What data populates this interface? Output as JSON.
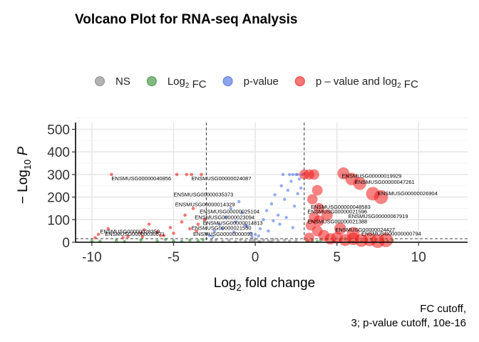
{
  "chart_data": {
    "type": "scatter",
    "title": "Volcano Plot for RNA-seq Analysis",
    "xlabel": {
      "base": "Log",
      "sub": "2",
      "rest": " fold change"
    },
    "ylabel": {
      "pre": "− Log",
      "sub": "10",
      "post": " P"
    },
    "xlim": [
      -11,
      13
    ],
    "ylim": [
      0,
      530
    ],
    "x_ticks": [
      -10,
      -5,
      0,
      5,
      10
    ],
    "x_tick_labels": [
      "-10",
      "-5",
      "0",
      "5",
      "10"
    ],
    "y_ticks": [
      0,
      100,
      200,
      300,
      400,
      500
    ],
    "y_tick_labels": [
      "0",
      "100",
      "200",
      "300",
      "400",
      "500"
    ],
    "grid": true,
    "legend_position": "top",
    "legend": [
      {
        "key": "NS",
        "parts": [
          {
            "t": "NS"
          }
        ],
        "color": "#808080"
      },
      {
        "key": "FC",
        "parts": [
          {
            "t": "Log"
          },
          {
            "t": "2",
            "sub": true
          },
          {
            "t": " FC"
          }
        ],
        "color": "#2e8b2e"
      },
      {
        "key": "P",
        "parts": [
          {
            "t": "p-value"
          }
        ],
        "color": "#4169e1"
      },
      {
        "key": "FCP",
        "parts": [
          {
            "t": "p – value and log"
          },
          {
            "t": "2",
            "sub": true
          },
          {
            "t": " FC"
          }
        ],
        "color": "#ee1c1c"
      }
    ],
    "fc_cutoff": 3,
    "pvalue_cutoff_line": 15.7,
    "caption": [
      "FC cutoff,",
      "3; p-value cutoff, 10e-16"
    ],
    "series": [
      {
        "key": "NS",
        "points": [
          [
            -0.6,
            5
          ],
          [
            -0.3,
            8
          ],
          [
            0.2,
            4
          ],
          [
            0.5,
            10
          ],
          [
            0.8,
            6
          ],
          [
            1.1,
            12
          ],
          [
            -1.2,
            3
          ],
          [
            1.4,
            7
          ],
          [
            -0.9,
            11
          ],
          [
            2.1,
            5
          ],
          [
            -2.0,
            4
          ],
          [
            0.0,
            14
          ],
          [
            1.8,
            9
          ],
          [
            -1.6,
            8
          ],
          [
            2.5,
            6
          ],
          [
            -2.4,
            10
          ],
          [
            0.3,
            2
          ],
          [
            -0.1,
            6
          ],
          [
            1.0,
            3
          ],
          [
            -2.7,
            7
          ]
        ]
      },
      {
        "key": "FC",
        "points": [
          [
            -10,
            6
          ],
          [
            -9.5,
            4
          ],
          [
            -8.5,
            8
          ],
          [
            -8,
            3
          ],
          [
            -7,
            10
          ],
          [
            -6,
            5
          ],
          [
            -5.5,
            12
          ],
          [
            -5,
            7
          ],
          [
            -4.5,
            4
          ],
          [
            -4,
            9
          ],
          [
            -3.5,
            6
          ],
          [
            -3.2,
            11
          ],
          [
            3.2,
            5
          ],
          [
            3.5,
            8
          ],
          [
            4,
            10
          ],
          [
            4.4,
            13
          ],
          [
            4.8,
            6
          ],
          [
            5.2,
            11
          ],
          [
            5.5,
            14
          ],
          [
            5.8,
            8
          ],
          [
            6.2,
            12
          ],
          [
            6.5,
            4
          ],
          [
            6.8,
            9
          ],
          [
            7.1,
            13
          ],
          [
            7.4,
            7
          ],
          [
            7.8,
            10
          ],
          [
            8.1,
            5
          ],
          [
            8.4,
            9
          ],
          [
            3.8,
            3
          ],
          [
            6.0,
            2
          ]
        ]
      },
      {
        "key": "P",
        "points": [
          [
            -2.8,
            30
          ],
          [
            -2.5,
            50
          ],
          [
            -2.2,
            80
          ],
          [
            -2,
            60
          ],
          [
            -1.8,
            110
          ],
          [
            -1.5,
            150
          ],
          [
            -1.2,
            90
          ],
          [
            -1,
            180
          ],
          [
            -0.8,
            130
          ],
          [
            -0.5,
            70
          ],
          [
            -0.3,
            40
          ],
          [
            0,
            35
          ],
          [
            0.3,
            60
          ],
          [
            0.5,
            100
          ],
          [
            0.7,
            140
          ],
          [
            1,
            170
          ],
          [
            1.2,
            210
          ],
          [
            1.4,
            120
          ],
          [
            1.6,
            250
          ],
          [
            1.8,
            190
          ],
          [
            2,
            230
          ],
          [
            2.2,
            270
          ],
          [
            2.4,
            160
          ],
          [
            2.5,
            300
          ],
          [
            2.6,
            215
          ],
          [
            2.7,
            280
          ],
          [
            2.8,
            240
          ],
          [
            2.9,
            300
          ],
          [
            1.5,
            80
          ],
          [
            0.8,
            50
          ],
          [
            -0.2,
            22
          ],
          [
            0.2,
            28
          ],
          [
            -1.3,
            45
          ],
          [
            1.9,
            110
          ],
          [
            2.3,
            65
          ],
          [
            -2.6,
            25
          ],
          [
            -0.6,
            75
          ],
          [
            1.1,
            95
          ],
          [
            2.6,
            300
          ],
          [
            2.3,
            300
          ],
          [
            2.1,
            300
          ],
          [
            1.7,
            300
          ]
        ]
      },
      {
        "key": "FCP",
        "points": [
          [
            -9.8,
            20
          ],
          [
            -9.6,
            35
          ],
          [
            -9,
            60
          ],
          [
            -8.8,
            300
          ],
          [
            -7.8,
            25
          ],
          [
            -7,
            40
          ],
          [
            -6.8,
            55
          ],
          [
            -6.5,
            80
          ],
          [
            -6,
            45
          ],
          [
            -5.8,
            30
          ],
          [
            -5.2,
            65
          ],
          [
            -5,
            40
          ],
          [
            -4.8,
            300
          ],
          [
            -4.5,
            90
          ],
          [
            -4.3,
            120
          ],
          [
            -4,
            60
          ],
          [
            -3.8,
            150
          ],
          [
            -3.5,
            80
          ],
          [
            -3.3,
            300
          ],
          [
            -3.1,
            100
          ],
          [
            -4.2,
            300
          ],
          [
            -3.9,
            300
          ],
          [
            -6.9,
            25
          ],
          [
            -5.6,
            30
          ],
          [
            -3.6,
            50
          ],
          [
            -8.1,
            20
          ]
        ],
        "big": [
          [
            3.0,
            300
          ],
          [
            3.3,
            300
          ],
          [
            3.6,
            300
          ],
          [
            3.8,
            230
          ],
          [
            3.9,
            150
          ],
          [
            3.5,
            190
          ],
          [
            3.6,
            110
          ],
          [
            3.4,
            75
          ],
          [
            3.8,
            50
          ],
          [
            4.2,
            30
          ],
          [
            4.6,
            15
          ],
          [
            5.0,
            20
          ],
          [
            5.5,
            10
          ],
          [
            6.0,
            15
          ],
          [
            6.5,
            8
          ],
          [
            7.0,
            12
          ],
          [
            7.5,
            5
          ],
          [
            8.0,
            10
          ],
          [
            3.3,
            20
          ],
          [
            5.4,
            305
          ],
          [
            5.9,
            280
          ],
          [
            6.4,
            260
          ],
          [
            7.2,
            215
          ],
          [
            7.7,
            200
          ],
          [
            4.4,
            120
          ],
          [
            5.2,
            60
          ],
          [
            6.0,
            40
          ],
          [
            3.9,
            95
          ]
        ]
      }
    ],
    "gene_labels": [
      {
        "text": "ENSMUSG00000040856",
        "x": -8.8,
        "y": 275
      },
      {
        "text": "ENSMUSG00000024087",
        "x": -3.9,
        "y": 275
      },
      {
        "text": "ENSMUSG00000035373",
        "x": -5.0,
        "y": 203
      },
      {
        "text": "ENSMUSG00000014329",
        "x": -4.9,
        "y": 160
      },
      {
        "text": "ENSMUSG00000025104",
        "x": -3.4,
        "y": 128
      },
      {
        "text": "ENSMUSG00000023094",
        "x": -3.7,
        "y": 103
      },
      {
        "text": "ENSMUSG00000014813",
        "x": -3.2,
        "y": 78
      },
      {
        "text": "ENSMUSG00000021550",
        "x": -3.9,
        "y": 55
      },
      {
        "text": "ENSMUSG00000028359",
        "x": -9.5,
        "y": 40
      },
      {
        "text": "ENSMUSG00000030671",
        "x": -9.2,
        "y": 28
      },
      {
        "text": "ENSMUSG00000000093",
        "x": -3.8,
        "y": 28
      },
      {
        "text": "ENSMUSG00000019929",
        "x": 5.3,
        "y": 285
      },
      {
        "text": "ENSMUSG00000047261",
        "x": 6.1,
        "y": 258
      },
      {
        "text": "ENSMUSG00000026904",
        "x": 7.5,
        "y": 208
      },
      {
        "text": "ENSMUSG00000048583",
        "x": 3.4,
        "y": 148
      },
      {
        "text": "ENSMUSG00000021596",
        "x": 3.2,
        "y": 128
      },
      {
        "text": "ENSMUSG00000067919",
        "x": 5.7,
        "y": 108
      },
      {
        "text": "ENSMUSG00000021388",
        "x": 3.2,
        "y": 83
      },
      {
        "text": "ENSMUSG00000024427",
        "x": 4.9,
        "y": 48
      },
      {
        "text": "ENSMUSG00000000794",
        "x": 6.5,
        "y": 30
      }
    ]
  }
}
